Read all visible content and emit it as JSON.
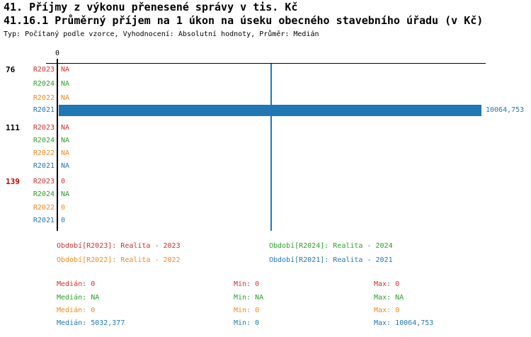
{
  "header": {
    "title1": "41. Příjmy z výkonu přenesené správy v tis. Kč",
    "title2": "41.16.1 Průměrný příjem na 1 úkon na úseku obecného stavebního úřadu (v Kč)",
    "meta": "Typ: Počítaný podle vzorce, Vyhodnocení: Absolutní hodnoty, Průměr: Medián"
  },
  "colors": {
    "R2023": "#d12f2f",
    "R2024": "#2ca02c",
    "R2022": "#f5871f",
    "R2021": "#1f77b4",
    "alert": "#cc0000",
    "axis": "#000000"
  },
  "chart_data": {
    "type": "bar",
    "orientation": "horizontal",
    "unit": "Kč",
    "x_axis": {
      "min": 0,
      "max": 10064.753,
      "zero_label": "0",
      "gridlines": false
    },
    "median_line": {
      "series": "R2021",
      "value": 5032.377
    },
    "series_order": [
      "R2023",
      "R2024",
      "R2022",
      "R2021"
    ],
    "groups": [
      {
        "label": "76",
        "rows": [
          {
            "series": "R2023",
            "value": "NA",
            "numeric": null
          },
          {
            "series": "R2024",
            "value": "NA",
            "numeric": null
          },
          {
            "series": "R2022",
            "value": "NA",
            "numeric": null
          },
          {
            "series": "R2021",
            "value": "10064,753",
            "numeric": 10064.753
          }
        ]
      },
      {
        "label": "111",
        "rows": [
          {
            "series": "R2023",
            "value": "NA",
            "numeric": null
          },
          {
            "series": "R2024",
            "value": "NA",
            "numeric": null
          },
          {
            "series": "R2022",
            "value": "NA",
            "numeric": null
          },
          {
            "series": "R2021",
            "value": "NA",
            "numeric": null
          }
        ]
      },
      {
        "label": "139",
        "rows": [
          {
            "series": "R2023",
            "value": "0",
            "numeric": 0
          },
          {
            "series": "R2024",
            "value": "NA",
            "numeric": null
          },
          {
            "series": "R2022",
            "value": "0",
            "numeric": 0
          },
          {
            "series": "R2021",
            "value": "0",
            "numeric": 0
          }
        ]
      }
    ]
  },
  "legend": {
    "items": [
      {
        "series": "R2023",
        "label": "Období[R2023]: Realita - 2023"
      },
      {
        "series": "R2024",
        "label": "Období[R2024]: Realita - 2024"
      },
      {
        "series": "R2022",
        "label": "Období[R2022]: Realita - 2022"
      },
      {
        "series": "R2021",
        "label": "Období[R2021]: Realita - 2021"
      }
    ]
  },
  "stats": {
    "labels": {
      "median": "Medián:",
      "min": "Min:",
      "max": "Max:"
    },
    "rows": [
      {
        "series": "R2023",
        "median": "0",
        "min": "0",
        "max": "0"
      },
      {
        "series": "R2024",
        "median": "NA",
        "min": "NA",
        "max": "NA"
      },
      {
        "series": "R2022",
        "median": "0",
        "min": "0",
        "max": "0"
      },
      {
        "series": "R2021",
        "median": "5032,377",
        "min": "0",
        "max": "10064,753"
      }
    ]
  }
}
